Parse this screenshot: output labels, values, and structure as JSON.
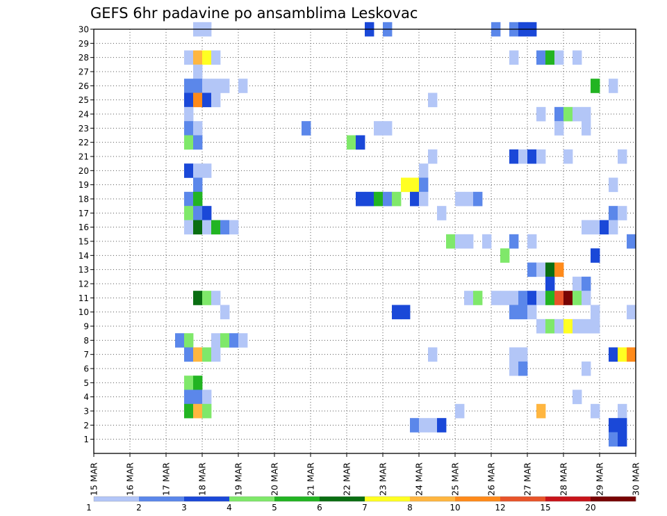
{
  "chart_data": {
    "type": "heatmap",
    "title": "GEFS 6hr padavine po ansamblima Leskovac",
    "xlabel": "",
    "ylabel": "",
    "x_ticks": [
      "15 MAR",
      "16 MAR",
      "17 MAR",
      "18 MAR",
      "19 MAR",
      "20 MAR",
      "21 MAR",
      "22 MAR",
      "23 MAR",
      "24 MAR",
      "25 MAR",
      "26 MAR",
      "27 MAR",
      "28 MAR",
      "29 MAR",
      "30 MAR"
    ],
    "x_units": "days from 15 MAR 00Z (15.0 = 15 MAR, 30.0 = 30 MAR)",
    "xlim": [
      15,
      30
    ],
    "ylim": [
      0,
      30
    ],
    "y_ticks": [
      1,
      2,
      3,
      4,
      5,
      6,
      7,
      8,
      9,
      10,
      11,
      12,
      13,
      14,
      15,
      16,
      17,
      18,
      19,
      20,
      21,
      22,
      23,
      24,
      25,
      26,
      27,
      28,
      29,
      30
    ],
    "ensemble_members": 30,
    "cell_duration_days": 0.25,
    "legend": {
      "labels": [
        "1",
        "2",
        "3",
        "4",
        "5",
        "6",
        "7",
        "8",
        "10",
        "12",
        "15",
        "20"
      ],
      "colors": [
        "#b3c6f7",
        "#5b87ea",
        "#1a48d8",
        "#7fe86a",
        "#22b422",
        "#0a6e12",
        "#ffff22",
        "#ffb640",
        "#ff8a1a",
        "#e8542a",
        "#c8141a",
        "#780404"
      ]
    },
    "cells": [
      {
        "m": 30,
        "t": 17.75,
        "v": 1
      },
      {
        "m": 30,
        "t": 18.0,
        "v": 1
      },
      {
        "m": 30,
        "t": 22.5,
        "v": 3
      },
      {
        "m": 30,
        "t": 23.0,
        "v": 2
      },
      {
        "m": 30,
        "t": 26.0,
        "v": 2
      },
      {
        "m": 30,
        "t": 26.5,
        "v": 2
      },
      {
        "m": 30,
        "t": 26.75,
        "v": 3
      },
      {
        "m": 30,
        "t": 27.0,
        "v": 3
      },
      {
        "m": 28,
        "t": 17.5,
        "v": 1
      },
      {
        "m": 28,
        "t": 17.75,
        "v": 8
      },
      {
        "m": 28,
        "t": 18.0,
        "v": 7
      },
      {
        "m": 28,
        "t": 18.25,
        "v": 1
      },
      {
        "m": 28,
        "t": 26.5,
        "v": 1
      },
      {
        "m": 28,
        "t": 27.25,
        "v": 2
      },
      {
        "m": 28,
        "t": 27.5,
        "v": 5
      },
      {
        "m": 28,
        "t": 27.75,
        "v": 1
      },
      {
        "m": 28,
        "t": 28.25,
        "v": 1
      },
      {
        "m": 27,
        "t": 17.75,
        "v": 1
      },
      {
        "m": 26,
        "t": 17.5,
        "v": 2
      },
      {
        "m": 26,
        "t": 17.75,
        "v": 2
      },
      {
        "m": 26,
        "t": 18.0,
        "v": 1
      },
      {
        "m": 26,
        "t": 18.25,
        "v": 1
      },
      {
        "m": 26,
        "t": 18.5,
        "v": 1
      },
      {
        "m": 26,
        "t": 19.0,
        "v": 1
      },
      {
        "m": 26,
        "t": 28.75,
        "v": 5
      },
      {
        "m": 26,
        "t": 29.25,
        "v": 1
      },
      {
        "m": 25,
        "t": 17.5,
        "v": 3
      },
      {
        "m": 25,
        "t": 17.75,
        "v": 10
      },
      {
        "m": 25,
        "t": 18.0,
        "v": 3
      },
      {
        "m": 25,
        "t": 18.25,
        "v": 1
      },
      {
        "m": 25,
        "t": 24.25,
        "v": 1
      },
      {
        "m": 24,
        "t": 17.5,
        "v": 1
      },
      {
        "m": 24,
        "t": 27.25,
        "v": 1
      },
      {
        "m": 24,
        "t": 27.75,
        "v": 2
      },
      {
        "m": 24,
        "t": 28.0,
        "v": 4
      },
      {
        "m": 24,
        "t": 28.25,
        "v": 1
      },
      {
        "m": 24,
        "t": 28.5,
        "v": 1
      },
      {
        "m": 23,
        "t": 17.5,
        "v": 2
      },
      {
        "m": 23,
        "t": 17.75,
        "v": 1
      },
      {
        "m": 23,
        "t": 20.75,
        "v": 2
      },
      {
        "m": 23,
        "t": 22.75,
        "v": 1
      },
      {
        "m": 23,
        "t": 23.0,
        "v": 1
      },
      {
        "m": 23,
        "t": 27.75,
        "v": 1
      },
      {
        "m": 23,
        "t": 28.5,
        "v": 1
      },
      {
        "m": 22,
        "t": 17.5,
        "v": 4
      },
      {
        "m": 22,
        "t": 17.75,
        "v": 2
      },
      {
        "m": 22,
        "t": 22.0,
        "v": 4
      },
      {
        "m": 22,
        "t": 22.25,
        "v": 3
      },
      {
        "m": 21,
        "t": 24.25,
        "v": 1
      },
      {
        "m": 21,
        "t": 26.5,
        "v": 3
      },
      {
        "m": 21,
        "t": 26.75,
        "v": 1
      },
      {
        "m": 21,
        "t": 27.0,
        "v": 3
      },
      {
        "m": 21,
        "t": 27.25,
        "v": 1
      },
      {
        "m": 21,
        "t": 28.0,
        "v": 1
      },
      {
        "m": 21,
        "t": 29.5,
        "v": 1
      },
      {
        "m": 20,
        "t": 17.5,
        "v": 3
      },
      {
        "m": 20,
        "t": 17.75,
        "v": 1
      },
      {
        "m": 20,
        "t": 18.0,
        "v": 1
      },
      {
        "m": 20,
        "t": 24.0,
        "v": 1
      },
      {
        "m": 19,
        "t": 17.75,
        "v": 2
      },
      {
        "m": 19,
        "t": 23.5,
        "v": 7
      },
      {
        "m": 19,
        "t": 23.75,
        "v": 7
      },
      {
        "m": 19,
        "t": 24.0,
        "v": 2
      },
      {
        "m": 19,
        "t": 29.25,
        "v": 1
      },
      {
        "m": 18,
        "t": 17.5,
        "v": 2
      },
      {
        "m": 18,
        "t": 17.75,
        "v": 5
      },
      {
        "m": 18,
        "t": 22.25,
        "v": 3
      },
      {
        "m": 18,
        "t": 22.5,
        "v": 3
      },
      {
        "m": 18,
        "t": 22.75,
        "v": 5
      },
      {
        "m": 18,
        "t": 23.0,
        "v": 2
      },
      {
        "m": 18,
        "t": 23.25,
        "v": 4
      },
      {
        "m": 18,
        "t": 23.75,
        "v": 3
      },
      {
        "m": 18,
        "t": 24.0,
        "v": 1
      },
      {
        "m": 18,
        "t": 25.0,
        "v": 1
      },
      {
        "m": 18,
        "t": 25.25,
        "v": 1
      },
      {
        "m": 18,
        "t": 25.5,
        "v": 2
      },
      {
        "m": 17,
        "t": 17.5,
        "v": 4
      },
      {
        "m": 17,
        "t": 17.75,
        "v": 2
      },
      {
        "m": 17,
        "t": 18.0,
        "v": 3
      },
      {
        "m": 17,
        "t": 24.5,
        "v": 1
      },
      {
        "m": 17,
        "t": 29.25,
        "v": 2
      },
      {
        "m": 17,
        "t": 29.5,
        "v": 1
      },
      {
        "m": 16,
        "t": 17.5,
        "v": 1
      },
      {
        "m": 16,
        "t": 17.75,
        "v": 6
      },
      {
        "m": 16,
        "t": 18.0,
        "v": 1
      },
      {
        "m": 16,
        "t": 18.25,
        "v": 5
      },
      {
        "m": 16,
        "t": 18.5,
        "v": 2
      },
      {
        "m": 16,
        "t": 18.75,
        "v": 1
      },
      {
        "m": 16,
        "t": 28.5,
        "v": 1
      },
      {
        "m": 16,
        "t": 28.75,
        "v": 1
      },
      {
        "m": 16,
        "t": 29.0,
        "v": 3
      },
      {
        "m": 16,
        "t": 29.25,
        "v": 1
      },
      {
        "m": 15,
        "t": 24.75,
        "v": 4
      },
      {
        "m": 15,
        "t": 25.0,
        "v": 1
      },
      {
        "m": 15,
        "t": 25.25,
        "v": 1
      },
      {
        "m": 15,
        "t": 25.75,
        "v": 1
      },
      {
        "m": 15,
        "t": 26.5,
        "v": 2
      },
      {
        "m": 15,
        "t": 27.0,
        "v": 1
      },
      {
        "m": 15,
        "t": 29.75,
        "v": 2
      },
      {
        "m": 14,
        "t": 26.25,
        "v": 4
      },
      {
        "m": 14,
        "t": 28.75,
        "v": 3
      },
      {
        "m": 13,
        "t": 27.0,
        "v": 2
      },
      {
        "m": 13,
        "t": 27.25,
        "v": 1
      },
      {
        "m": 13,
        "t": 27.5,
        "v": 6
      },
      {
        "m": 13,
        "t": 27.75,
        "v": 10
      },
      {
        "m": 12,
        "t": 27.5,
        "v": 3
      },
      {
        "m": 12,
        "t": 28.25,
        "v": 1
      },
      {
        "m": 12,
        "t": 28.5,
        "v": 2
      },
      {
        "m": 11,
        "t": 17.75,
        "v": 6
      },
      {
        "m": 11,
        "t": 18.0,
        "v": 4
      },
      {
        "m": 11,
        "t": 18.25,
        "v": 1
      },
      {
        "m": 11,
        "t": 25.25,
        "v": 1
      },
      {
        "m": 11,
        "t": 25.5,
        "v": 4
      },
      {
        "m": 11,
        "t": 26.0,
        "v": 1
      },
      {
        "m": 11,
        "t": 26.25,
        "v": 1
      },
      {
        "m": 11,
        "t": 26.5,
        "v": 1
      },
      {
        "m": 11,
        "t": 26.75,
        "v": 2
      },
      {
        "m": 11,
        "t": 27.0,
        "v": 3
      },
      {
        "m": 11,
        "t": 27.25,
        "v": 1
      },
      {
        "m": 11,
        "t": 27.5,
        "v": 5
      },
      {
        "m": 11,
        "t": 27.75,
        "v": 12
      },
      {
        "m": 11,
        "t": 28.0,
        "v": 20
      },
      {
        "m": 11,
        "t": 28.25,
        "v": 4
      },
      {
        "m": 11,
        "t": 28.5,
        "v": 1
      },
      {
        "m": 10,
        "t": 18.5,
        "v": 1
      },
      {
        "m": 10,
        "t": 23.25,
        "v": 3
      },
      {
        "m": 10,
        "t": 23.5,
        "v": 3
      },
      {
        "m": 10,
        "t": 26.5,
        "v": 2
      },
      {
        "m": 10,
        "t": 26.75,
        "v": 2
      },
      {
        "m": 10,
        "t": 27.0,
        "v": 1
      },
      {
        "m": 10,
        "t": 28.75,
        "v": 1
      },
      {
        "m": 10,
        "t": 29.75,
        "v": 1
      },
      {
        "m": 9,
        "t": 27.25,
        "v": 1
      },
      {
        "m": 9,
        "t": 27.5,
        "v": 4
      },
      {
        "m": 9,
        "t": 27.75,
        "v": 1
      },
      {
        "m": 9,
        "t": 28.0,
        "v": 7
      },
      {
        "m": 9,
        "t": 28.25,
        "v": 1
      },
      {
        "m": 9,
        "t": 28.5,
        "v": 1
      },
      {
        "m": 9,
        "t": 28.75,
        "v": 1
      },
      {
        "m": 8,
        "t": 17.25,
        "v": 2
      },
      {
        "m": 8,
        "t": 17.5,
        "v": 4
      },
      {
        "m": 8,
        "t": 18.25,
        "v": 1
      },
      {
        "m": 8,
        "t": 18.5,
        "v": 4
      },
      {
        "m": 8,
        "t": 18.75,
        "v": 2
      },
      {
        "m": 8,
        "t": 19.0,
        "v": 1
      },
      {
        "m": 7,
        "t": 17.5,
        "v": 2
      },
      {
        "m": 7,
        "t": 17.75,
        "v": 8
      },
      {
        "m": 7,
        "t": 18.0,
        "v": 4
      },
      {
        "m": 7,
        "t": 18.25,
        "v": 1
      },
      {
        "m": 7,
        "t": 24.25,
        "v": 1
      },
      {
        "m": 7,
        "t": 26.5,
        "v": 1
      },
      {
        "m": 7,
        "t": 26.75,
        "v": 1
      },
      {
        "m": 7,
        "t": 29.25,
        "v": 3
      },
      {
        "m": 7,
        "t": 29.5,
        "v": 7
      },
      {
        "m": 7,
        "t": 29.75,
        "v": 10
      },
      {
        "m": 6,
        "t": 26.5,
        "v": 1
      },
      {
        "m": 6,
        "t": 26.75,
        "v": 2
      },
      {
        "m": 6,
        "t": 28.5,
        "v": 1
      },
      {
        "m": 5,
        "t": 17.5,
        "v": 4
      },
      {
        "m": 5,
        "t": 17.75,
        "v": 5
      },
      {
        "m": 4,
        "t": 17.5,
        "v": 2
      },
      {
        "m": 4,
        "t": 17.75,
        "v": 2
      },
      {
        "m": 4,
        "t": 18.0,
        "v": 1
      },
      {
        "m": 4,
        "t": 28.25,
        "v": 1
      },
      {
        "m": 3,
        "t": 17.5,
        "v": 5
      },
      {
        "m": 3,
        "t": 17.75,
        "v": 8
      },
      {
        "m": 3,
        "t": 18.0,
        "v": 4
      },
      {
        "m": 3,
        "t": 25.0,
        "v": 1
      },
      {
        "m": 3,
        "t": 27.25,
        "v": 8
      },
      {
        "m": 3,
        "t": 28.75,
        "v": 1
      },
      {
        "m": 3,
        "t": 29.5,
        "v": 1
      },
      {
        "m": 2,
        "t": 23.75,
        "v": 2
      },
      {
        "m": 2,
        "t": 24.0,
        "v": 1
      },
      {
        "m": 2,
        "t": 24.25,
        "v": 1
      },
      {
        "m": 2,
        "t": 24.5,
        "v": 3
      },
      {
        "m": 2,
        "t": 29.25,
        "v": 3
      },
      {
        "m": 2,
        "t": 29.5,
        "v": 3
      },
      {
        "m": 1,
        "t": 29.25,
        "v": 2
      },
      {
        "m": 1,
        "t": 29.5,
        "v": 3
      }
    ]
  }
}
